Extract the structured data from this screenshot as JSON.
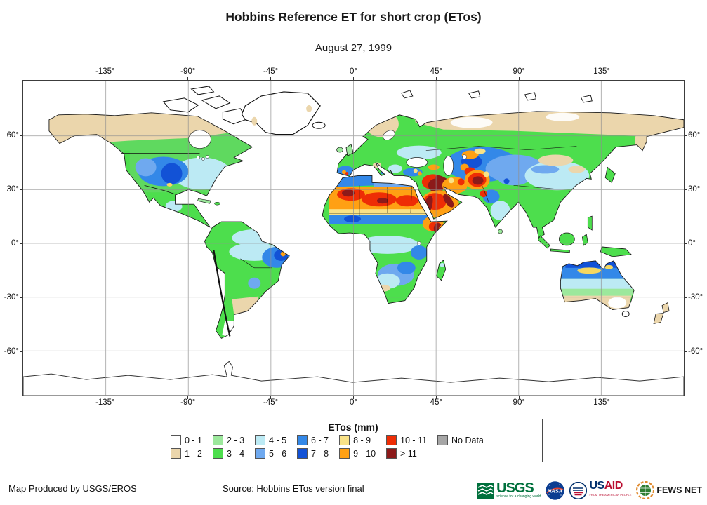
{
  "title": "Hobbins Reference ET for short crop (ETos)",
  "subtitle": "August 27, 1999",
  "axes": {
    "lon": [
      "-135°",
      "-90°",
      "-45°",
      "0°",
      "45°",
      "90°",
      "135°"
    ],
    "lat": [
      "60°",
      "30°",
      "0°",
      "-30°",
      "-60°"
    ]
  },
  "legend": {
    "title": "ETos (mm)",
    "items": [
      {
        "label": "0 - 1",
        "color": "#FFFFFF"
      },
      {
        "label": "1 - 2",
        "color": "#EBD6AC"
      },
      {
        "label": "2 - 3",
        "color": "#9CE89C"
      },
      {
        "label": "3 - 4",
        "color": "#4DDE4D"
      },
      {
        "label": "4 - 5",
        "color": "#BCEAF4"
      },
      {
        "label": "5 - 6",
        "color": "#6FA9EF"
      },
      {
        "label": "6 - 7",
        "color": "#3388E8"
      },
      {
        "label": "7 - 8",
        "color": "#1252D6"
      },
      {
        "label": "8 - 9",
        "color": "#F9E287"
      },
      {
        "label": "9 - 10",
        "color": "#FFA013"
      },
      {
        "label": "10 - 11",
        "color": "#EE2D05"
      },
      {
        "label": "> 11",
        "color": "#8C1A1A"
      },
      {
        "label": "No Data",
        "color": "#A6A6A6"
      }
    ]
  },
  "footer": {
    "left": "Map Produced by USGS/EROS",
    "source": "Source: Hobbins ETos version final"
  },
  "logos": {
    "usgs": {
      "name": "USGS",
      "tagline": "science for a changing world"
    },
    "nasa": {
      "name": "NASA"
    },
    "usaid": {
      "us": "US",
      "aid": "AID",
      "tagline": "FROM THE AMERICAN PEOPLE"
    },
    "fewsnet": {
      "name": "FEWS NET"
    }
  }
}
